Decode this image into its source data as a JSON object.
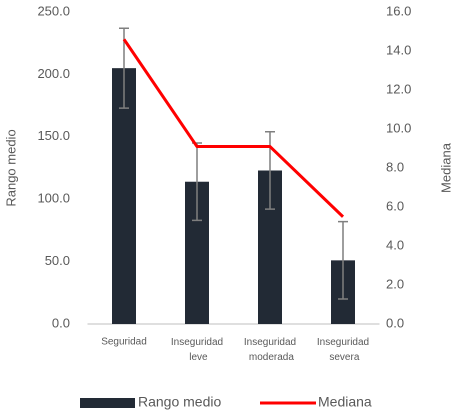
{
  "chart_data": {
    "type": "bar_line",
    "categories": [
      "Seguridad",
      "Inseguridad leve",
      "Inseguridad moderada",
      "Inseguridad severa"
    ],
    "series": [
      {
        "name": "Rango medio",
        "type": "bar",
        "color": "#222a35",
        "values": [
          205,
          114,
          123,
          51
        ],
        "errors": [
          32,
          31,
          31,
          31
        ],
        "error_color": "#7f7f7f"
      },
      {
        "name": "Mediana",
        "type": "line",
        "axis": "y2",
        "color": "#ff0000",
        "values": [
          14.6,
          9.1,
          9.1,
          5.5
        ]
      }
    ],
    "ylabel": "Rango medio",
    "y2label": "Mediana",
    "ylim": [
      0,
      250
    ],
    "yticks": [
      {
        "value": 0,
        "label": "0.0"
      },
      {
        "value": 50,
        "label": "50.0"
      },
      {
        "value": 100,
        "label": "100.0"
      },
      {
        "value": 150,
        "label": "150.0"
      },
      {
        "value": 200,
        "label": "200.0"
      },
      {
        "value": 250,
        "label": "250.0"
      }
    ],
    "y2lim": [
      0,
      16
    ],
    "y2ticks": [
      {
        "value": 0,
        "label": "0.0"
      },
      {
        "value": 2,
        "label": "2.0"
      },
      {
        "value": 4,
        "label": "4.0"
      },
      {
        "value": 6,
        "label": "6.0"
      },
      {
        "value": 8,
        "label": "8.0"
      },
      {
        "value": 10,
        "label": "10.0"
      },
      {
        "value": 12,
        "label": "12.0"
      },
      {
        "value": 14,
        "label": "14.0"
      },
      {
        "value": 16,
        "label": "16.0"
      }
    ],
    "legend": "bottom"
  }
}
